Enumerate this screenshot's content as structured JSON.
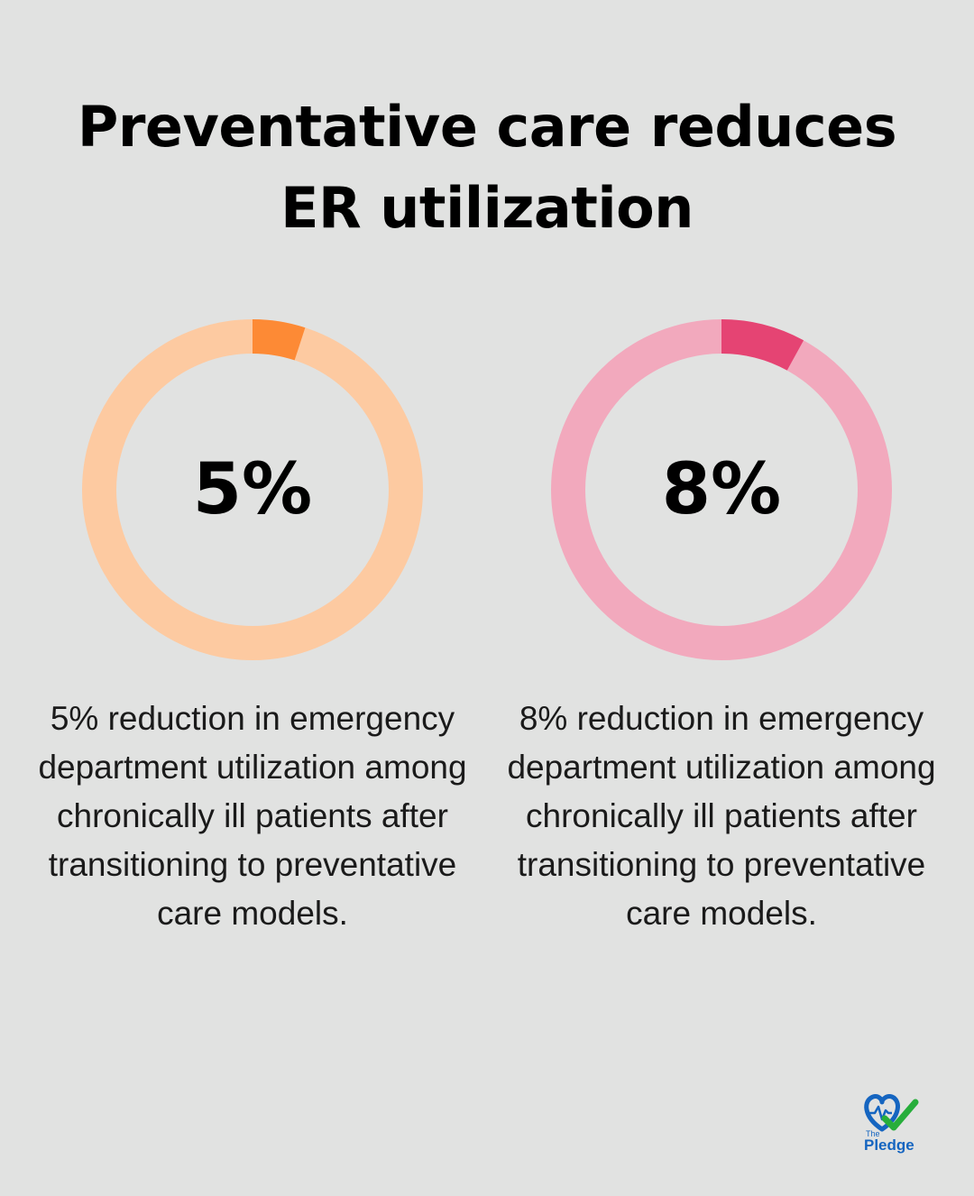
{
  "title": "Preventative care reduces ER utilization",
  "chart_data": [
    {
      "type": "pie",
      "value": 5,
      "label": "5%",
      "description": "5% reduction in emergency department utilization among chronically ill patients after transitioning to preventative care models.",
      "colors": {
        "track": "#fdcaa1",
        "fill": "#fd8a35"
      }
    },
    {
      "type": "pie",
      "value": 8,
      "label": "8%",
      "description": "8% reduction in emergency department utilization among chronically ill patients after transitioning to preventative care models.",
      "colors": {
        "track": "#f2a9bd",
        "fill": "#e54473"
      }
    }
  ],
  "logo": {
    "line1": "The",
    "line2": "Pledge"
  }
}
